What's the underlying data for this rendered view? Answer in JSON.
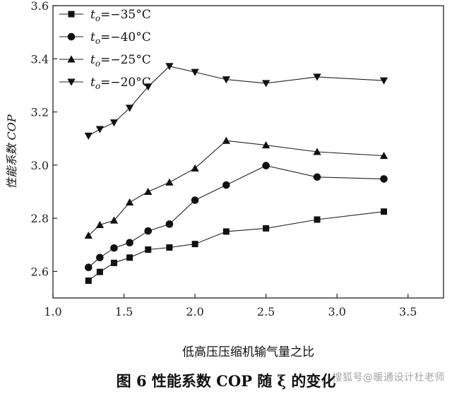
{
  "chart_data": {
    "type": "line",
    "xlabel": "低高压压缩机输气量之比",
    "ylabel": "性能系数 COP",
    "xlim": [
      1.0,
      3.75
    ],
    "ylim": [
      2.5,
      3.6
    ],
    "xticks": [
      "1.0",
      "1.5",
      "2.0",
      "2.5",
      "3.0",
      "3.5"
    ],
    "yticks": [
      "2.6",
      "2.8",
      "3.0",
      "3.2",
      "3.4",
      "3.6"
    ],
    "legend_position": "top-left",
    "series": [
      {
        "name": "to=−35°C",
        "name_sub": "o",
        "name_rest": "=−35°C",
        "marker": "square",
        "x": [
          1.25,
          1.33,
          1.43,
          1.54,
          1.67,
          1.82,
          2.0,
          2.22,
          2.5,
          2.86,
          3.33
        ],
        "y": [
          2.565,
          2.598,
          2.632,
          2.652,
          2.682,
          2.69,
          2.703,
          2.75,
          2.762,
          2.795,
          2.825
        ]
      },
      {
        "name": "to=−40°C",
        "name_sub": "o",
        "name_rest": "=−40°C",
        "marker": "circle",
        "x": [
          1.25,
          1.33,
          1.43,
          1.54,
          1.67,
          1.82,
          2.0,
          2.22,
          2.5,
          2.86,
          3.33
        ],
        "y": [
          2.615,
          2.652,
          2.688,
          2.708,
          2.752,
          2.778,
          2.868,
          2.925,
          2.998,
          2.955,
          2.948
        ]
      },
      {
        "name": "to=−25°C",
        "name_sub": "o",
        "name_rest": "=−25°C",
        "marker": "triangle-up",
        "x": [
          1.25,
          1.33,
          1.43,
          1.54,
          1.67,
          1.82,
          2.0,
          2.22,
          2.5,
          2.86,
          3.33
        ],
        "y": [
          2.735,
          2.775,
          2.792,
          2.86,
          2.9,
          2.935,
          2.988,
          3.092,
          3.075,
          3.05,
          3.035
        ]
      },
      {
        "name": "to=−20°C",
        "name_sub": "o",
        "name_rest": "=−20°C",
        "marker": "triangle-down",
        "x": [
          1.25,
          1.33,
          1.43,
          1.54,
          1.67,
          1.82,
          2.0,
          2.22,
          2.5,
          2.86,
          3.33
        ],
        "y": [
          3.11,
          3.135,
          3.16,
          3.215,
          3.295,
          3.372,
          3.35,
          3.322,
          3.308,
          3.332,
          3.318
        ]
      }
    ]
  },
  "caption": "图 6  性能系数 COP 随 ξ 的变化",
  "watermark": "搜狐号@暖通设计杜老师"
}
